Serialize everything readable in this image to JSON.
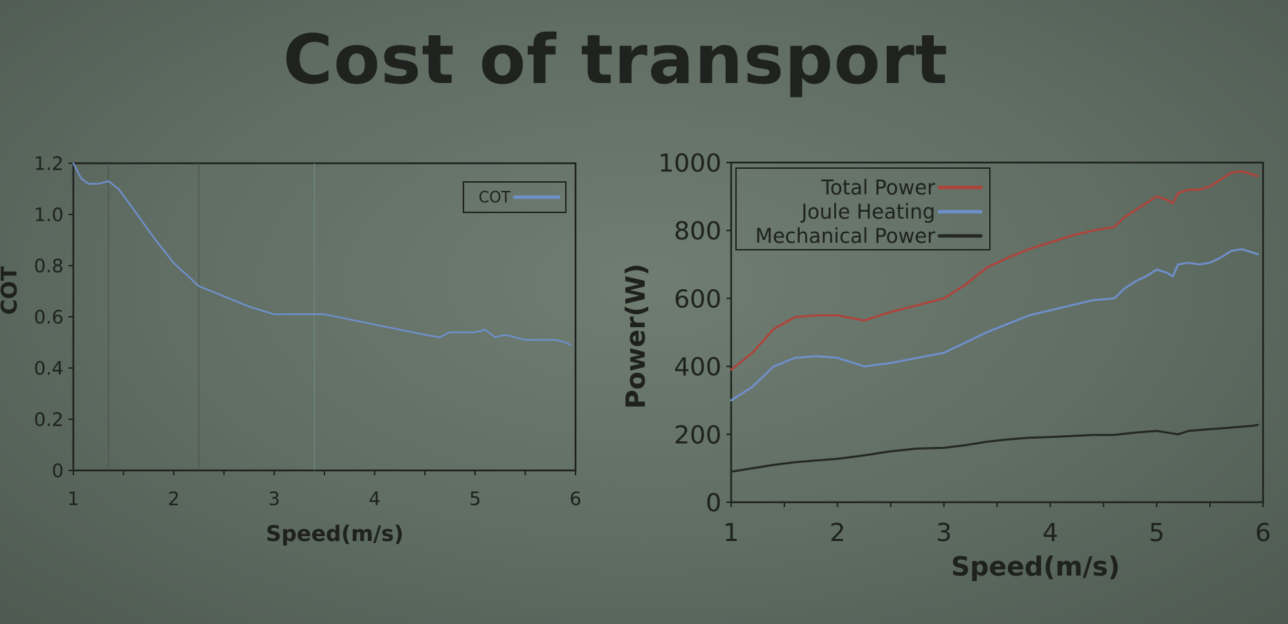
{
  "slide": {
    "title": "Cost of transport"
  },
  "colors": {
    "background": "#66746a",
    "ink": "#1e211d",
    "cot": "#6f8fc8",
    "total_power": "#b0433a",
    "joule_heating": "#6f8fc8",
    "mechanical_power": "#252825"
  },
  "chart_data": [
    {
      "type": "line",
      "title": "",
      "xlabel": "Speed(m/s)",
      "ylabel": "COT",
      "xlim": [
        1,
        6
      ],
      "ylim": [
        0,
        1.2
      ],
      "x_ticks": [
        1,
        2,
        3,
        4,
        5,
        6
      ],
      "x_tick_labels": [
        "1",
        "2",
        "3",
        "4",
        "5",
        "6"
      ],
      "y_ticks": [
        0,
        0.2,
        0.4,
        0.6,
        0.8,
        1.0,
        1.2
      ],
      "y_tick_labels": [
        "0",
        "0.2",
        "0.4",
        "0.6",
        "0.8",
        "1.0",
        "1.2"
      ],
      "vertical_markers": [
        1.35,
        2.25,
        3.4
      ],
      "legend_position": "top-right",
      "grid": false,
      "series": [
        {
          "name": "COT",
          "color": "#6f8fc8",
          "x": [
            1.0,
            1.08,
            1.15,
            1.25,
            1.35,
            1.45,
            1.6,
            1.8,
            2.0,
            2.25,
            2.5,
            2.75,
            3.0,
            3.25,
            3.5,
            3.75,
            4.0,
            4.25,
            4.5,
            4.65,
            4.75,
            4.85,
            5.0,
            5.1,
            5.2,
            5.3,
            5.4,
            5.5,
            5.6,
            5.7,
            5.8,
            5.9,
            5.95
          ],
          "y": [
            1.2,
            1.14,
            1.12,
            1.12,
            1.13,
            1.1,
            1.02,
            0.91,
            0.81,
            0.72,
            0.68,
            0.64,
            0.61,
            0.61,
            0.61,
            0.59,
            0.57,
            0.55,
            0.53,
            0.52,
            0.54,
            0.54,
            0.54,
            0.55,
            0.52,
            0.53,
            0.52,
            0.51,
            0.51,
            0.51,
            0.51,
            0.5,
            0.49
          ]
        }
      ]
    },
    {
      "type": "line",
      "title": "",
      "xlabel": "Speed(m/s)",
      "ylabel": "Power(W)",
      "xlim": [
        1,
        6
      ],
      "ylim": [
        0,
        1000
      ],
      "x_ticks": [
        1,
        2,
        3,
        4,
        5,
        6
      ],
      "x_tick_labels": [
        "1",
        "2",
        "3",
        "4",
        "5",
        "6"
      ],
      "y_ticks": [
        0,
        200,
        400,
        600,
        800,
        1000
      ],
      "y_tick_labels": [
        "0",
        "200",
        "400",
        "600",
        "800",
        "1000"
      ],
      "legend_position": "top-left",
      "grid": false,
      "series": [
        {
          "name": "Total Power",
          "color": "#b0433a",
          "x": [
            1.0,
            1.2,
            1.4,
            1.6,
            1.8,
            2.0,
            2.25,
            2.5,
            2.75,
            3.0,
            3.2,
            3.4,
            3.6,
            3.8,
            4.0,
            4.2,
            4.4,
            4.6,
            4.7,
            4.8,
            4.9,
            5.0,
            5.1,
            5.15,
            5.2,
            5.3,
            5.4,
            5.5,
            5.6,
            5.7,
            5.8,
            5.9,
            5.95
          ],
          "y": [
            390,
            440,
            510,
            545,
            550,
            550,
            535,
            560,
            580,
            600,
            640,
            690,
            720,
            745,
            765,
            785,
            800,
            810,
            840,
            860,
            880,
            900,
            890,
            880,
            910,
            920,
            920,
            930,
            950,
            970,
            975,
            965,
            960
          ]
        },
        {
          "name": "Joule Heating",
          "color": "#6f8fc8",
          "x": [
            1.0,
            1.2,
            1.4,
            1.6,
            1.8,
            2.0,
            2.25,
            2.5,
            2.75,
            3.0,
            3.2,
            3.4,
            3.6,
            3.8,
            4.0,
            4.2,
            4.4,
            4.6,
            4.7,
            4.8,
            4.9,
            5.0,
            5.1,
            5.15,
            5.2,
            5.3,
            5.4,
            5.5,
            5.6,
            5.7,
            5.8,
            5.9,
            5.95
          ],
          "y": [
            300,
            340,
            400,
            425,
            430,
            425,
            400,
            410,
            425,
            440,
            470,
            500,
            525,
            550,
            565,
            580,
            595,
            600,
            630,
            650,
            665,
            685,
            675,
            665,
            700,
            705,
            700,
            705,
            720,
            740,
            745,
            735,
            730
          ]
        },
        {
          "name": "Mechanical Power",
          "color": "#252825",
          "x": [
            1.0,
            1.2,
            1.4,
            1.6,
            1.8,
            2.0,
            2.25,
            2.5,
            2.75,
            3.0,
            3.2,
            3.4,
            3.6,
            3.8,
            4.0,
            4.2,
            4.4,
            4.6,
            4.8,
            5.0,
            5.1,
            5.2,
            5.3,
            5.5,
            5.7,
            5.9,
            5.95
          ],
          "y": [
            90,
            100,
            110,
            118,
            123,
            128,
            138,
            150,
            158,
            160,
            168,
            178,
            185,
            190,
            192,
            195,
            198,
            198,
            205,
            210,
            205,
            200,
            210,
            215,
            220,
            225,
            228
          ]
        }
      ]
    }
  ]
}
